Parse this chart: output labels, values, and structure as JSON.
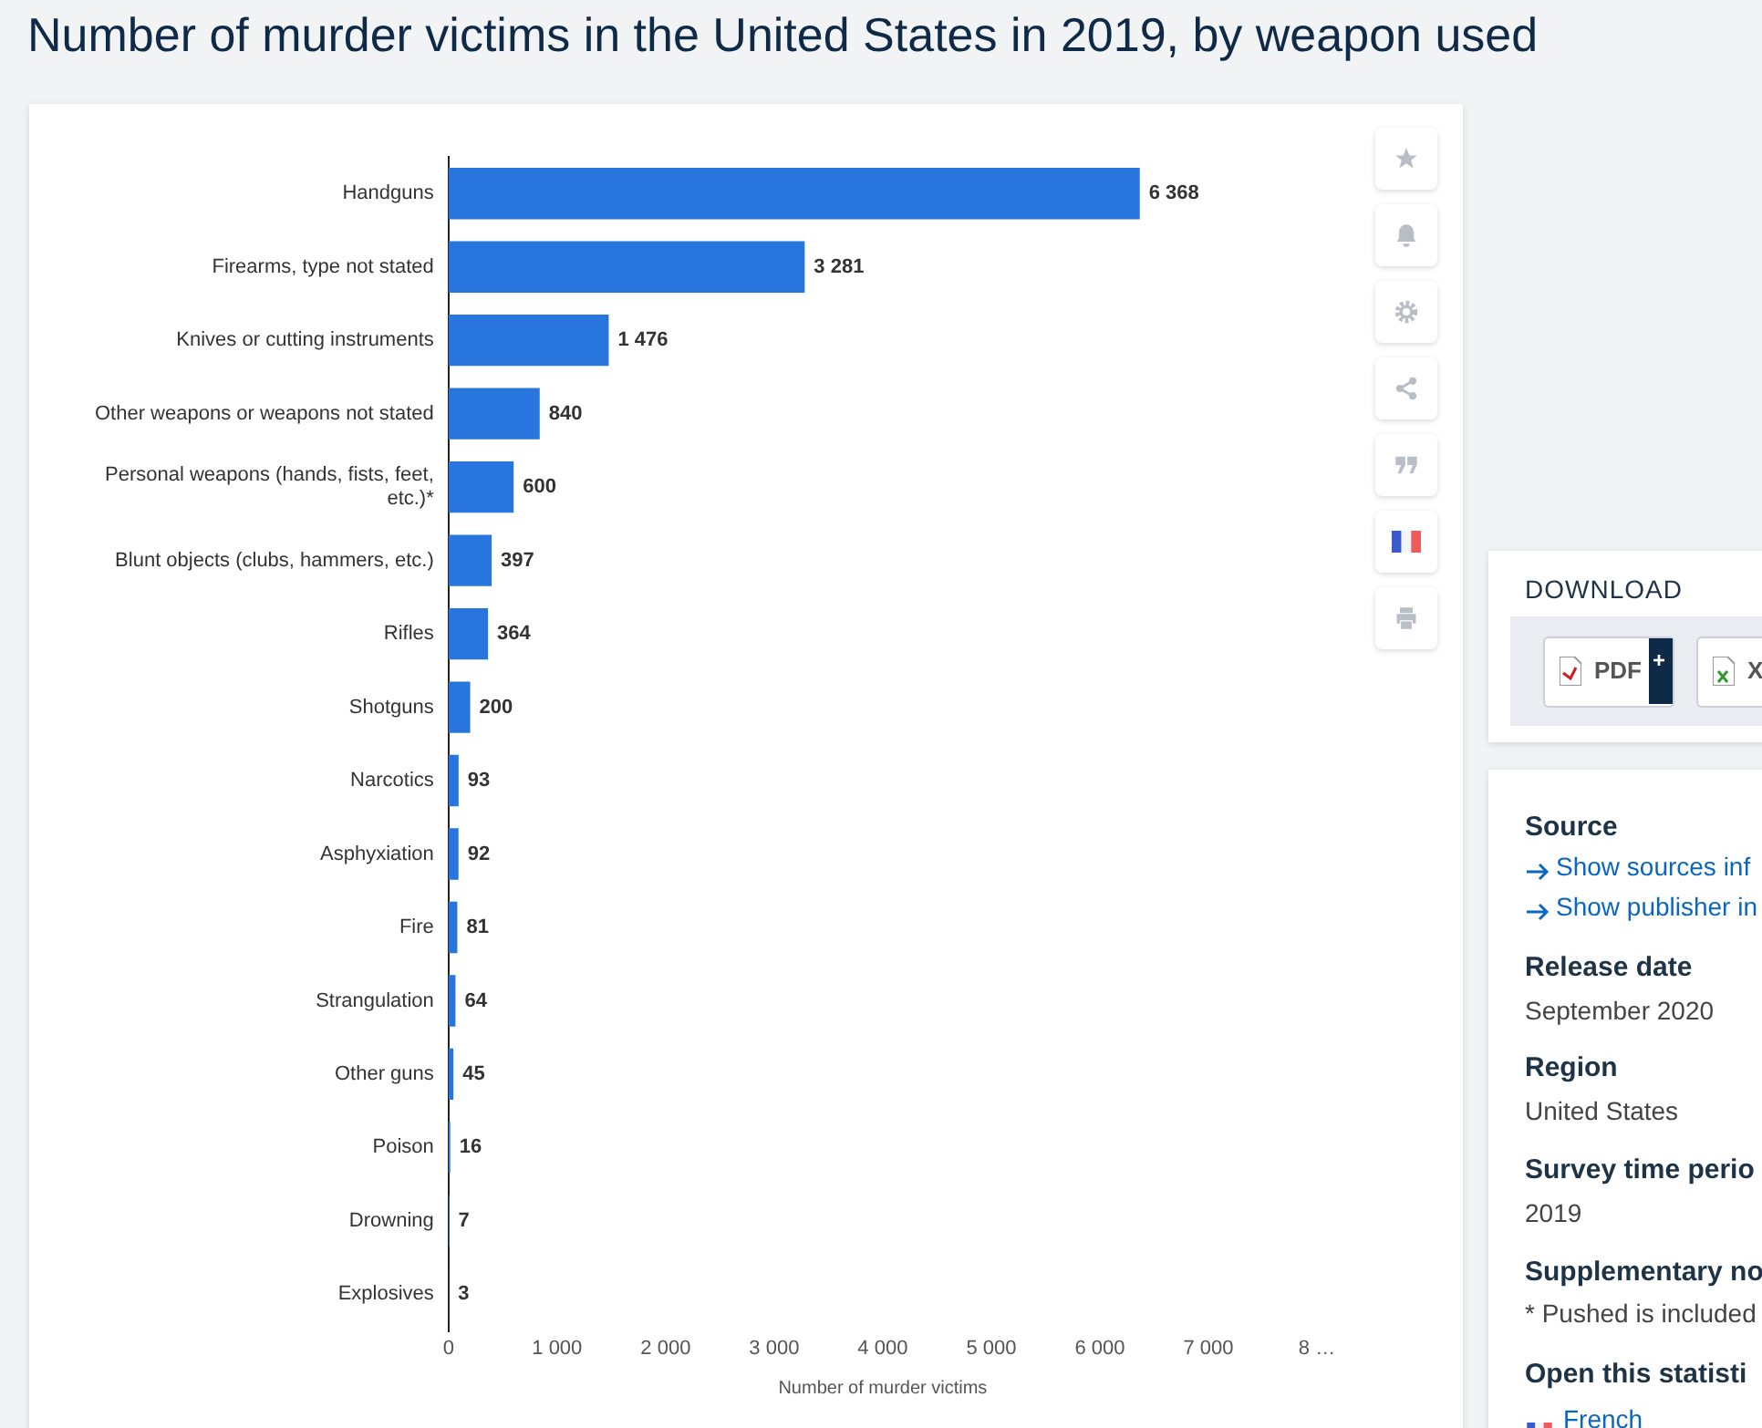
{
  "chart_data": {
    "type": "bar",
    "orientation": "horizontal",
    "title": "Number of murder victims in the United States in 2019, by weapon used",
    "xlabel": "Number of murder victims",
    "categories": [
      "Handguns",
      "Firearms, type not stated",
      "Knives or cutting instruments",
      "Other weapons or weapons not stated",
      "Personal weapons (hands, fists, feet, etc.)*",
      "Blunt objects (clubs, hammers, etc.)",
      "Rifles",
      "Shotguns",
      "Narcotics",
      "Asphyxiation",
      "Fire",
      "Strangulation",
      "Other guns",
      "Poison",
      "Drowning",
      "Explosives"
    ],
    "values": [
      6368,
      3281,
      1476,
      840,
      600,
      397,
      364,
      200,
      93,
      92,
      81,
      64,
      45,
      16,
      7,
      3
    ],
    "value_labels": [
      "6 368",
      "3 281",
      "1 476",
      "840",
      "600",
      "397",
      "364",
      "200",
      "93",
      "92",
      "81",
      "64",
      "45",
      "16",
      "7",
      "3"
    ],
    "color": "#2876dd",
    "xlim": [
      0,
      8000
    ],
    "xticks": [
      0,
      {
        "value": 1000,
        "label": "1 000"
      },
      {
        "value": 2000,
        "label": "2 000"
      },
      {
        "value": 3000,
        "label": "3 000"
      },
      {
        "value": 4000,
        "label": "4 000"
      },
      {
        "value": 5000,
        "label": "5 000"
      },
      {
        "value": 6000,
        "label": "6 000"
      },
      {
        "value": 7000,
        "label": "7 000"
      },
      {
        "value": 8000,
        "label": "8 …"
      }
    ],
    "grid": false,
    "legend": false,
    "annotations": [
      "DOWNLOAD",
      "PDF",
      "+",
      "X",
      "Source",
      "Show sources inf",
      "Show publisher in",
      "Release date",
      "September 2020",
      "Region",
      "United States",
      "Survey time perio",
      "2019",
      "Supplementary no",
      "* Pushed is included",
      "Open this statisti",
      "French"
    ]
  }
}
